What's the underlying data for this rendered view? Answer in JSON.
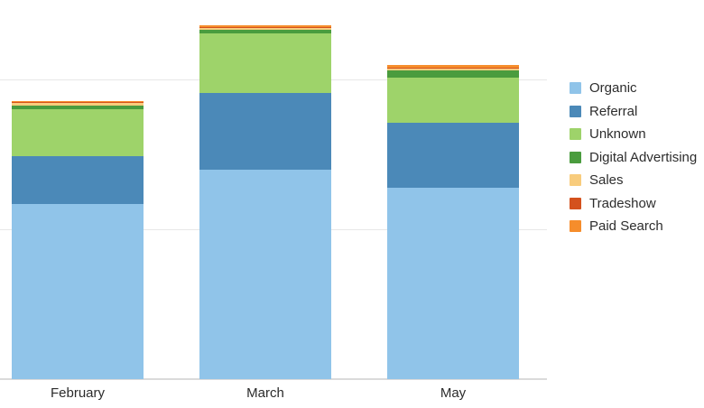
{
  "chart_data": {
    "type": "bar",
    "stacked": true,
    "title": "",
    "xlabel": "",
    "ylabel": "",
    "categories": [
      "February",
      "March",
      "May"
    ],
    "series": [
      {
        "name": "Organic",
        "color": "#90c4e9",
        "values": [
          58.5,
          70.0,
          64.0
        ]
      },
      {
        "name": "Referral",
        "color": "#4b89b8",
        "values": [
          16.0,
          25.5,
          21.5
        ]
      },
      {
        "name": "Unknown",
        "color": "#9ed36a",
        "values": [
          15.5,
          20.0,
          15.0
        ]
      },
      {
        "name": "Digital Advertising",
        "color": "#4a9c3e",
        "values": [
          1.2,
          1.0,
          2.4
        ]
      },
      {
        "name": "Sales",
        "color": "#f8cc7d",
        "values": [
          0.9,
          0.7,
          0.7
        ]
      },
      {
        "name": "Tradeshow",
        "color": "#d4511d",
        "values": [
          0.3,
          0.3,
          0.3
        ]
      },
      {
        "name": "Paid Search",
        "color": "#f68d2b",
        "values": [
          0.5,
          0.5,
          0.8
        ]
      }
    ],
    "totals": [
      92.9,
      118.0,
      104.7
    ],
    "ylim": [
      0,
      126.5
    ],
    "gridlines_y": [
      50,
      100
    ],
    "y_axis_labels": "none",
    "grid": "horizontal",
    "legend_position": "right",
    "legend_order": [
      "Organic",
      "Referral",
      "Unknown",
      "Digital Advertising",
      "Sales",
      "Tradeshow",
      "Paid Search"
    ]
  },
  "style": {
    "background": "#ffffff",
    "gridline_color": "#e7e7e7",
    "axis_line_color": "#dadada",
    "label_text_color": "#2b2b2b",
    "legend_text_color": "#2d2d2d"
  }
}
